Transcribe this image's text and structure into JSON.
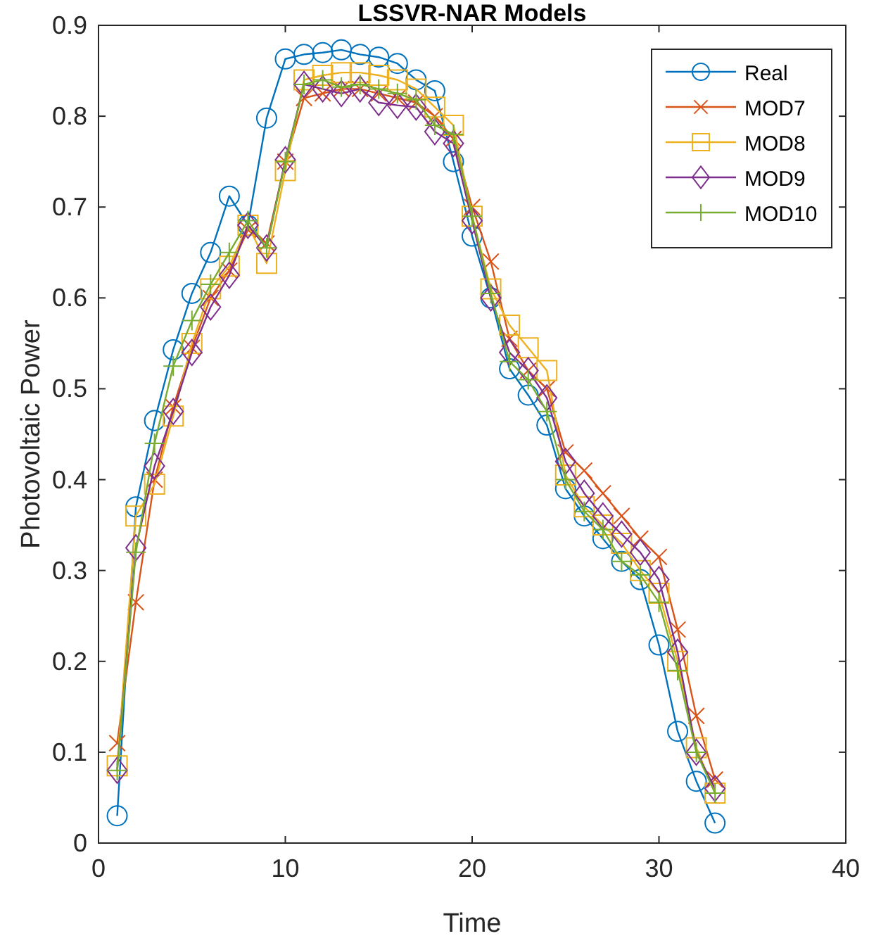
{
  "chart_data": {
    "type": "line",
    "title": "LSSVR-NAR Models",
    "xlabel": "Time",
    "ylabel": "Photovoltaic Power",
    "x": [
      1,
      2,
      3,
      4,
      5,
      6,
      7,
      8,
      9,
      10,
      11,
      12,
      13,
      14,
      15,
      16,
      17,
      18,
      19,
      20,
      21,
      22,
      23,
      24,
      25,
      26,
      27,
      28,
      29,
      30,
      31,
      32,
      33
    ],
    "xlim": [
      0,
      40
    ],
    "xticks": [
      0,
      10,
      20,
      30,
      40
    ],
    "ylim": [
      0,
      0.9
    ],
    "yticks": [
      0,
      0.1,
      0.2,
      0.3,
      0.4,
      0.5,
      0.6,
      0.7,
      0.8,
      0.9
    ],
    "grid": false,
    "legend": "top right",
    "line_style": "solid",
    "series": [
      {
        "name": "Real",
        "color": "#0072bd",
        "marker": "circle",
        "values": [
          0.03,
          0.37,
          0.465,
          0.543,
          0.605,
          0.65,
          0.712,
          0.68,
          0.798,
          0.863,
          0.868,
          0.87,
          0.873,
          0.868,
          0.865,
          0.858,
          0.84,
          0.828,
          0.75,
          0.668,
          0.6,
          0.522,
          0.493,
          0.46,
          0.39,
          0.36,
          0.335,
          0.31,
          0.29,
          0.218,
          0.123,
          0.068,
          0.022
        ]
      },
      {
        "name": "MOD7",
        "color": "#d95319",
        "marker": "cross",
        "values": [
          0.11,
          0.265,
          0.4,
          0.48,
          0.545,
          0.6,
          0.63,
          0.675,
          0.66,
          0.75,
          0.82,
          0.825,
          0.83,
          0.83,
          0.825,
          0.82,
          0.815,
          0.8,
          0.775,
          0.7,
          0.64,
          0.555,
          0.52,
          0.5,
          0.43,
          0.41,
          0.385,
          0.36,
          0.335,
          0.315,
          0.235,
          0.14,
          0.07
        ]
      },
      {
        "name": "MOD8",
        "color": "#edb120",
        "marker": "square",
        "values": [
          0.085,
          0.36,
          0.395,
          0.47,
          0.55,
          0.61,
          0.635,
          0.68,
          0.638,
          0.74,
          0.84,
          0.845,
          0.848,
          0.848,
          0.845,
          0.84,
          0.83,
          0.81,
          0.79,
          0.69,
          0.61,
          0.57,
          0.545,
          0.52,
          0.405,
          0.37,
          0.35,
          0.33,
          0.3,
          0.275,
          0.2,
          0.105,
          0.055
        ]
      },
      {
        "name": "MOD9",
        "color": "#7e2f8e",
        "marker": "diamond",
        "values": [
          0.08,
          0.325,
          0.415,
          0.475,
          0.54,
          0.59,
          0.625,
          0.68,
          0.655,
          0.752,
          0.835,
          0.83,
          0.825,
          0.83,
          0.815,
          0.812,
          0.81,
          0.783,
          0.77,
          0.685,
          0.6,
          0.54,
          0.52,
          0.49,
          0.42,
          0.385,
          0.36,
          0.34,
          0.32,
          0.29,
          0.21,
          0.1,
          0.06
        ]
      },
      {
        "name": "MOD10",
        "color": "#77ac30",
        "marker": "plus",
        "values": [
          0.08,
          0.32,
          0.44,
          0.525,
          0.575,
          0.615,
          0.65,
          0.685,
          0.655,
          0.75,
          0.835,
          0.84,
          0.832,
          0.835,
          0.83,
          0.825,
          0.818,
          0.79,
          0.78,
          0.69,
          0.605,
          0.53,
          0.51,
          0.475,
          0.4,
          0.365,
          0.345,
          0.31,
          0.295,
          0.265,
          0.19,
          0.1,
          0.055
        ]
      }
    ]
  }
}
